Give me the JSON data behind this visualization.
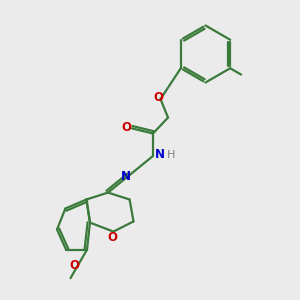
{
  "bg_color": "#ebebeb",
  "bond_color": "#3a7a3a",
  "O_color": "#cc0000",
  "N_color": "#0000cc",
  "H_color": "#808080",
  "lw": 1.6,
  "dbl_sep": 0.008,
  "figsize": [
    3.0,
    3.0
  ],
  "dpi": 100,
  "xlim": [
    0.0,
    1.0
  ],
  "ylim": [
    0.0,
    1.0
  ]
}
